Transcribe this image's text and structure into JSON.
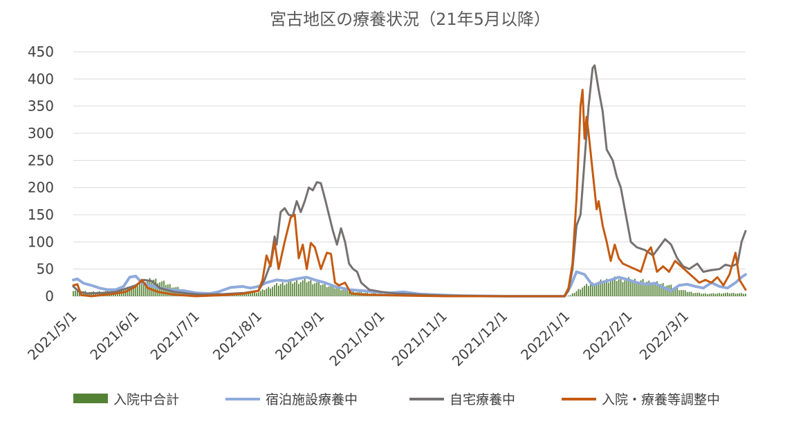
{
  "chart_data": {
    "type": "line",
    "title": "宮古地区の療養状況（21年5月以降）",
    "x_start": "2021/5/1",
    "x_end": "2022/3/31",
    "ylim": [
      0,
      450
    ],
    "yticks": [
      0,
      50,
      100,
      150,
      200,
      250,
      300,
      350,
      400,
      450
    ],
    "xticks": [
      {
        "date": "2021/5/1",
        "label": "2021/5/1"
      },
      {
        "date": "2021/6/1",
        "label": "2021/6/1"
      },
      {
        "date": "2021/7/1",
        "label": "2021/7/1"
      },
      {
        "date": "2021/8/1",
        "label": "2021/8/1"
      },
      {
        "date": "2021/9/1",
        "label": "2021/9/1"
      },
      {
        "date": "2021/10/1",
        "label": "2021/10/1"
      },
      {
        "date": "2021/11/1",
        "label": "2021/11/1"
      },
      {
        "date": "2021/12/1",
        "label": "2021/12/1"
      },
      {
        "date": "2022/1/1",
        "label": "2022/1/1"
      },
      {
        "date": "2022/2/1",
        "label": "2022/2/1"
      },
      {
        "date": "2022/3/1",
        "label": "2022/3/1"
      }
    ],
    "grid": true,
    "legend_position": "bottom",
    "series": [
      {
        "name": "入院中合計",
        "kind": "bar",
        "color": "#548235",
        "points": [
          [
            "2021/5/1",
            12
          ],
          [
            "2021/5/10",
            8
          ],
          [
            "2021/5/20",
            10
          ],
          [
            "2021/5/25",
            14
          ],
          [
            "2021/6/1",
            20
          ],
          [
            "2021/6/5",
            28
          ],
          [
            "2021/6/10",
            32
          ],
          [
            "2021/6/15",
            26
          ],
          [
            "2021/6/20",
            18
          ],
          [
            "2021/6/25",
            12
          ],
          [
            "2021/7/1",
            6
          ],
          [
            "2021/7/10",
            4
          ],
          [
            "2021/7/20",
            3
          ],
          [
            "2021/7/25",
            5
          ],
          [
            "2021/8/1",
            8
          ],
          [
            "2021/8/5",
            15
          ],
          [
            "2021/8/10",
            22
          ],
          [
            "2021/8/15",
            26
          ],
          [
            "2021/8/20",
            28
          ],
          [
            "2021/8/25",
            30
          ],
          [
            "2021/9/1",
            24
          ],
          [
            "2021/9/5",
            20
          ],
          [
            "2021/9/10",
            15
          ],
          [
            "2021/9/15",
            10
          ],
          [
            "2021/9/20",
            8
          ],
          [
            "2021/9/25",
            6
          ],
          [
            "2021/10/1",
            5
          ],
          [
            "2021/10/10",
            3
          ],
          [
            "2021/10/20",
            2
          ],
          [
            "2021/11/1",
            0
          ],
          [
            "2021/12/1",
            0
          ],
          [
            "2021/12/31",
            0
          ],
          [
            "2022/1/3",
            2
          ],
          [
            "2022/1/6",
            10
          ],
          [
            "2022/1/9",
            18
          ],
          [
            "2022/1/12",
            22
          ],
          [
            "2022/1/16",
            26
          ],
          [
            "2022/1/20",
            30
          ],
          [
            "2022/1/25",
            33
          ],
          [
            "2022/2/1",
            32
          ],
          [
            "2022/2/5",
            30
          ],
          [
            "2022/2/10",
            28
          ],
          [
            "2022/2/15",
            25
          ],
          [
            "2022/2/20",
            22
          ],
          [
            "2022/2/25",
            15
          ],
          [
            "2022/3/1",
            10
          ],
          [
            "2022/3/5",
            7
          ],
          [
            "2022/3/10",
            5
          ],
          [
            "2022/3/15",
            5
          ],
          [
            "2022/3/20",
            6
          ],
          [
            "2022/3/25",
            6
          ],
          [
            "2022/3/31",
            5
          ]
        ]
      },
      {
        "name": "宿泊施設療養中",
        "kind": "line",
        "color": "#8faadc",
        "points": [
          [
            "2021/5/1",
            30
          ],
          [
            "2021/5/3",
            32
          ],
          [
            "2021/5/6",
            24
          ],
          [
            "2021/5/10",
            20
          ],
          [
            "2021/5/14",
            15
          ],
          [
            "2021/5/18",
            12
          ],
          [
            "2021/5/22",
            12
          ],
          [
            "2021/5/26",
            18
          ],
          [
            "2021/5/29",
            35
          ],
          [
            "2021/6/1",
            37
          ],
          [
            "2021/6/4",
            25
          ],
          [
            "2021/6/8",
            20
          ],
          [
            "2021/6/13",
            15
          ],
          [
            "2021/6/18",
            12
          ],
          [
            "2021/6/25",
            10
          ],
          [
            "2021/7/1",
            6
          ],
          [
            "2021/7/8",
            5
          ],
          [
            "2021/7/12",
            8
          ],
          [
            "2021/7/18",
            16
          ],
          [
            "2021/7/24",
            18
          ],
          [
            "2021/7/28",
            15
          ],
          [
            "2021/8/1",
            18
          ],
          [
            "2021/8/5",
            25
          ],
          [
            "2021/8/10",
            30
          ],
          [
            "2021/8/15",
            28
          ],
          [
            "2021/8/20",
            32
          ],
          [
            "2021/8/25",
            35
          ],
          [
            "2021/8/29",
            30
          ],
          [
            "2021/9/3",
            25
          ],
          [
            "2021/9/8",
            18
          ],
          [
            "2021/9/15",
            12
          ],
          [
            "2021/9/22",
            10
          ],
          [
            "2021/9/28",
            8
          ],
          [
            "2021/10/5",
            6
          ],
          [
            "2021/10/12",
            8
          ],
          [
            "2021/10/20",
            4
          ],
          [
            "2021/11/1",
            2
          ],
          [
            "2021/11/10",
            1
          ],
          [
            "2021/12/1",
            0
          ],
          [
            "2021/12/31",
            0
          ],
          [
            "2022/1/3",
            18
          ],
          [
            "2022/1/6",
            45
          ],
          [
            "2022/1/10",
            40
          ],
          [
            "2022/1/14",
            20
          ],
          [
            "2022/1/18",
            25
          ],
          [
            "2022/1/23",
            30
          ],
          [
            "2022/1/27",
            35
          ],
          [
            "2022/2/1",
            30
          ],
          [
            "2022/2/5",
            25
          ],
          [
            "2022/2/10",
            22
          ],
          [
            "2022/2/14",
            24
          ],
          [
            "2022/2/18",
            16
          ],
          [
            "2022/2/22",
            10
          ],
          [
            "2022/2/26",
            20
          ],
          [
            "2022/3/2",
            22
          ],
          [
            "2022/3/6",
            18
          ],
          [
            "2022/3/10",
            15
          ],
          [
            "2022/3/14",
            25
          ],
          [
            "2022/3/18",
            18
          ],
          [
            "2022/3/22",
            15
          ],
          [
            "2022/3/26",
            25
          ],
          [
            "2022/3/29",
            35
          ],
          [
            "2022/3/31",
            40
          ]
        ]
      },
      {
        "name": "自宅療養中",
        "kind": "line",
        "color": "#767171",
        "points": [
          [
            "2021/5/1",
            18
          ],
          [
            "2021/5/4",
            8
          ],
          [
            "2021/5/8",
            5
          ],
          [
            "2021/5/15",
            6
          ],
          [
            "2021/5/22",
            8
          ],
          [
            "2021/5/28",
            15
          ],
          [
            "2021/6/1",
            20
          ],
          [
            "2021/6/5",
            30
          ],
          [
            "2021/6/9",
            28
          ],
          [
            "2021/6/13",
            15
          ],
          [
            "2021/6/20",
            8
          ],
          [
            "2021/6/27",
            5
          ],
          [
            "2021/7/4",
            3
          ],
          [
            "2021/7/15",
            4
          ],
          [
            "2021/7/25",
            6
          ],
          [
            "2021/8/1",
            10
          ],
          [
            "2021/8/4",
            30
          ],
          [
            "2021/8/7",
            60
          ],
          [
            "2021/8/9",
            110
          ],
          [
            "2021/8/10",
            95
          ],
          [
            "2021/8/12",
            155
          ],
          [
            "2021/8/14",
            162
          ],
          [
            "2021/8/16",
            150
          ],
          [
            "2021/8/18",
            148
          ],
          [
            "2021/8/20",
            175
          ],
          [
            "2021/8/22",
            155
          ],
          [
            "2021/8/24",
            175
          ],
          [
            "2021/8/26",
            200
          ],
          [
            "2021/8/28",
            195
          ],
          [
            "2021/8/30",
            210
          ],
          [
            "2021/9/1",
            208
          ],
          [
            "2021/9/3",
            180
          ],
          [
            "2021/9/5",
            150
          ],
          [
            "2021/9/7",
            120
          ],
          [
            "2021/9/9",
            95
          ],
          [
            "2021/9/11",
            125
          ],
          [
            "2021/9/13",
            100
          ],
          [
            "2021/9/15",
            60
          ],
          [
            "2021/9/17",
            50
          ],
          [
            "2021/9/19",
            45
          ],
          [
            "2021/9/21",
            25
          ],
          [
            "2021/9/25",
            12
          ],
          [
            "2021/10/1",
            8
          ],
          [
            "2021/10/8",
            5
          ],
          [
            "2021/10/15",
            4
          ],
          [
            "2021/10/25",
            2
          ],
          [
            "2021/11/5",
            1
          ],
          [
            "2021/12/1",
            0
          ],
          [
            "2021/12/31",
            0
          ],
          [
            "2022/1/2",
            10
          ],
          [
            "2022/1/4",
            50
          ],
          [
            "2022/1/6",
            130
          ],
          [
            "2022/1/8",
            150
          ],
          [
            "2022/1/10",
            250
          ],
          [
            "2022/1/12",
            350
          ],
          [
            "2022/1/14",
            420
          ],
          [
            "2022/1/15",
            425
          ],
          [
            "2022/1/17",
            380
          ],
          [
            "2022/1/19",
            340
          ],
          [
            "2022/1/21",
            270
          ],
          [
            "2022/1/24",
            250
          ],
          [
            "2022/1/26",
            220
          ],
          [
            "2022/1/28",
            200
          ],
          [
            "2022/1/30",
            160
          ],
          [
            "2022/2/2",
            100
          ],
          [
            "2022/2/5",
            90
          ],
          [
            "2022/2/9",
            85
          ],
          [
            "2022/2/13",
            75
          ],
          [
            "2022/2/16",
            90
          ],
          [
            "2022/2/19",
            105
          ],
          [
            "2022/2/22",
            95
          ],
          [
            "2022/2/25",
            70
          ],
          [
            "2022/2/28",
            55
          ],
          [
            "2022/3/3",
            50
          ],
          [
            "2022/3/7",
            60
          ],
          [
            "2022/3/10",
            45
          ],
          [
            "2022/3/14",
            48
          ],
          [
            "2022/3/18",
            50
          ],
          [
            "2022/3/21",
            58
          ],
          [
            "2022/3/24",
            55
          ],
          [
            "2022/3/27",
            60
          ],
          [
            "2022/3/29",
            100
          ],
          [
            "2022/3/31",
            120
          ]
        ]
      },
      {
        "name": "入院・療養等調整中",
        "kind": "line",
        "color": "#c55a11",
        "points": [
          [
            "2021/5/1",
            20
          ],
          [
            "2021/5/3",
            22
          ],
          [
            "2021/5/5",
            2
          ],
          [
            "2021/5/10",
            0
          ],
          [
            "2021/5/20",
            4
          ],
          [
            "2021/5/27",
            8
          ],
          [
            "2021/6/1",
            18
          ],
          [
            "2021/6/4",
            30
          ],
          [
            "2021/6/7",
            15
          ],
          [
            "2021/6/12",
            8
          ],
          [
            "2021/6/20",
            3
          ],
          [
            "2021/7/1",
            0
          ],
          [
            "2021/7/15",
            2
          ],
          [
            "2021/7/25",
            5
          ],
          [
            "2021/8/1",
            10
          ],
          [
            "2021/8/3",
            30
          ],
          [
            "2021/8/5",
            75
          ],
          [
            "2021/8/7",
            55
          ],
          [
            "2021/8/9",
            100
          ],
          [
            "2021/8/11",
            50
          ],
          [
            "2021/8/14",
            100
          ],
          [
            "2021/8/17",
            145
          ],
          [
            "2021/8/19",
            150
          ],
          [
            "2021/8/21",
            70
          ],
          [
            "2021/8/23",
            95
          ],
          [
            "2021/8/25",
            50
          ],
          [
            "2021/8/27",
            98
          ],
          [
            "2021/8/29",
            90
          ],
          [
            "2021/9/1",
            50
          ],
          [
            "2021/9/4",
            80
          ],
          [
            "2021/9/6",
            78
          ],
          [
            "2021/9/8",
            25
          ],
          [
            "2021/9/10",
            20
          ],
          [
            "2021/9/13",
            25
          ],
          [
            "2021/9/16",
            5
          ],
          [
            "2021/9/22",
            3
          ],
          [
            "2021/10/1",
            2
          ],
          [
            "2021/10/15",
            1
          ],
          [
            "2021/11/1",
            0
          ],
          [
            "2021/12/31",
            0
          ],
          [
            "2022/1/2",
            15
          ],
          [
            "2022/1/4",
            60
          ],
          [
            "2022/1/6",
            180
          ],
          [
            "2022/1/8",
            350
          ],
          [
            "2022/1/9",
            380
          ],
          [
            "2022/1/10",
            290
          ],
          [
            "2022/1/11",
            330
          ],
          [
            "2022/1/12",
            300
          ],
          [
            "2022/1/14",
            230
          ],
          [
            "2022/1/16",
            160
          ],
          [
            "2022/1/17",
            175
          ],
          [
            "2022/1/19",
            130
          ],
          [
            "2022/1/21",
            100
          ],
          [
            "2022/1/23",
            65
          ],
          [
            "2022/1/25",
            95
          ],
          [
            "2022/1/27",
            70
          ],
          [
            "2022/1/29",
            60
          ],
          [
            "2022/2/1",
            55
          ],
          [
            "2022/2/4",
            50
          ],
          [
            "2022/2/7",
            45
          ],
          [
            "2022/2/10",
            80
          ],
          [
            "2022/2/12",
            90
          ],
          [
            "2022/2/15",
            45
          ],
          [
            "2022/2/18",
            55
          ],
          [
            "2022/2/21",
            45
          ],
          [
            "2022/2/24",
            65
          ],
          [
            "2022/2/27",
            55
          ],
          [
            "2022/3/2",
            45
          ],
          [
            "2022/3/5",
            35
          ],
          [
            "2022/3/8",
            25
          ],
          [
            "2022/3/11",
            30
          ],
          [
            "2022/3/14",
            25
          ],
          [
            "2022/3/17",
            35
          ],
          [
            "2022/3/20",
            20
          ],
          [
            "2022/3/23",
            40
          ],
          [
            "2022/3/26",
            80
          ],
          [
            "2022/3/28",
            30
          ],
          [
            "2022/3/31",
            12
          ]
        ]
      }
    ]
  }
}
